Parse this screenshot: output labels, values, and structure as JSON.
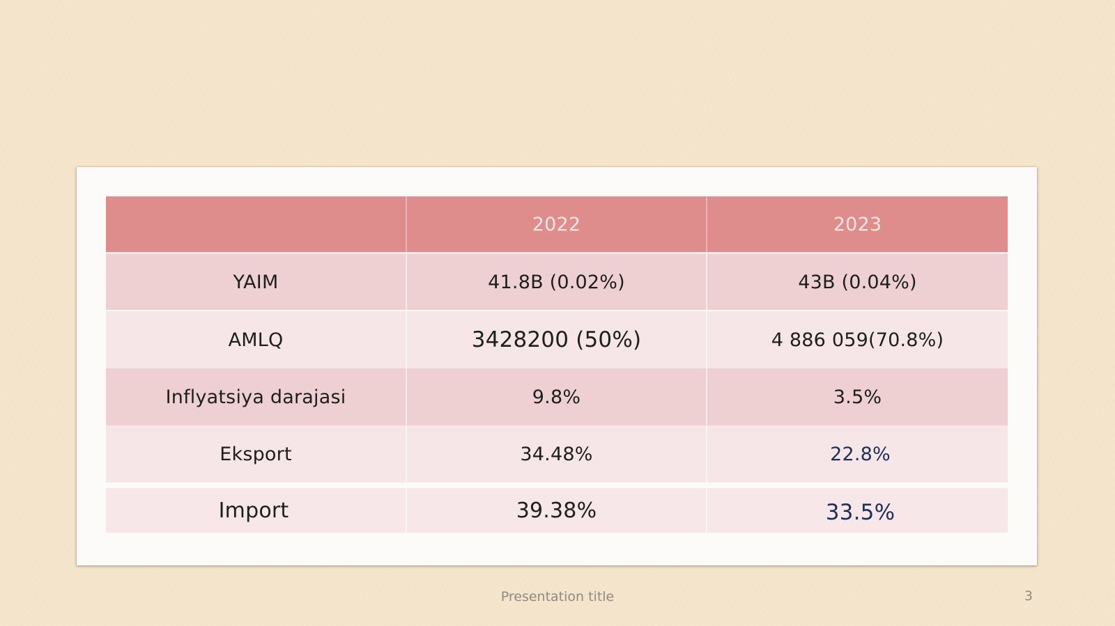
{
  "table": {
    "headers": [
      "",
      "2022",
      "2023"
    ],
    "rows": [
      [
        "YAIM",
        "41.8B (0.02%)",
        "43B (0.04%)"
      ],
      [
        "AMLQ",
        "3428200 (50%)",
        "4 886 059(70.8%)"
      ],
      [
        "Inflyatsiya darajasi",
        "9.8%",
        "3.5%"
      ],
      [
        "Eksport",
        "34.48%",
        "22.8%"
      ],
      [
        "Import",
        "39.38%",
        "33.5%"
      ]
    ]
  },
  "footer": {
    "title": "Presentation title",
    "page_number": "3"
  },
  "colors": {
    "background": "#f3e4cb",
    "header_fill": "#de8c8c",
    "row_dark": "#efd0d2",
    "row_light": "#f7e6e7",
    "accent_text": "#1f2f5a"
  }
}
